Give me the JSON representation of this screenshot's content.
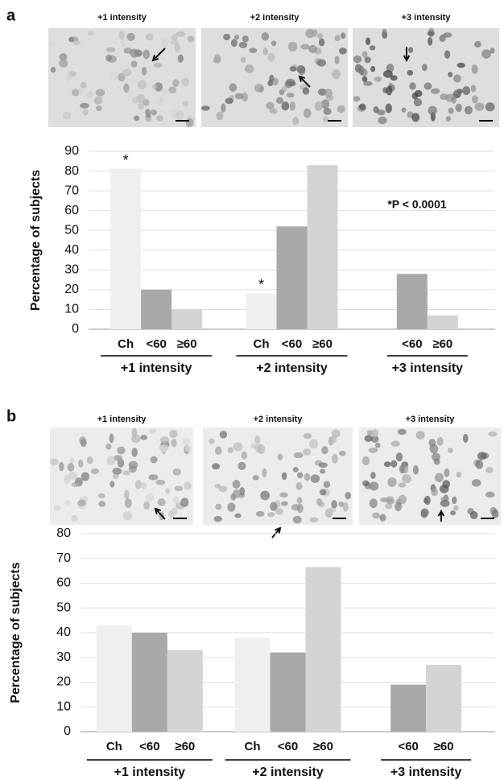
{
  "chart_data": [
    {
      "type": "bar",
      "panel_label": "a",
      "image_captions": [
        "+1 intensity",
        "+2 intensity",
        "+3 intensity"
      ],
      "y_label": "Percentage of subjects",
      "categories": [
        "+1 intensity",
        "+2 intensity",
        "+3 intensity"
      ],
      "series": [
        {
          "name": "Ch",
          "color": "#efefef",
          "values": [
            81,
            18,
            null
          ],
          "significance": [
            "*",
            "*",
            null
          ]
        },
        {
          "name": "<60",
          "color": "#a9a9a9",
          "values": [
            20,
            52,
            28
          ]
        },
        {
          "name": "≥60",
          "color": "#d4d4d4",
          "values": [
            10,
            83,
            7
          ]
        }
      ],
      "note": "*P < 0.0001",
      "ylim": [
        0,
        90
      ],
      "yticks": [
        0,
        10,
        20,
        30,
        40,
        50,
        60,
        70,
        80,
        90
      ],
      "grid": true
    },
    {
      "type": "bar",
      "panel_label": "b",
      "image_captions": [
        "+1 intensity",
        "+2 intensity",
        "+3 intensity"
      ],
      "y_label": "Percentage of subjects",
      "categories": [
        "+1 intensity",
        "+2 intensity",
        "+3 intensity"
      ],
      "series": [
        {
          "name": "Ch",
          "color": "#efefef",
          "values": [
            43,
            38,
            null
          ]
        },
        {
          "name": "<60",
          "color": "#a9a9a9",
          "values": [
            40,
            32,
            19
          ]
        },
        {
          "name": "≥60",
          "color": "#d4d4d4",
          "values": [
            33,
            66.5,
            27
          ]
        }
      ],
      "ylim": [
        0,
        80
      ],
      "yticks": [
        0,
        10,
        20,
        30,
        40,
        50,
        60,
        70,
        80
      ],
      "grid": true
    }
  ]
}
